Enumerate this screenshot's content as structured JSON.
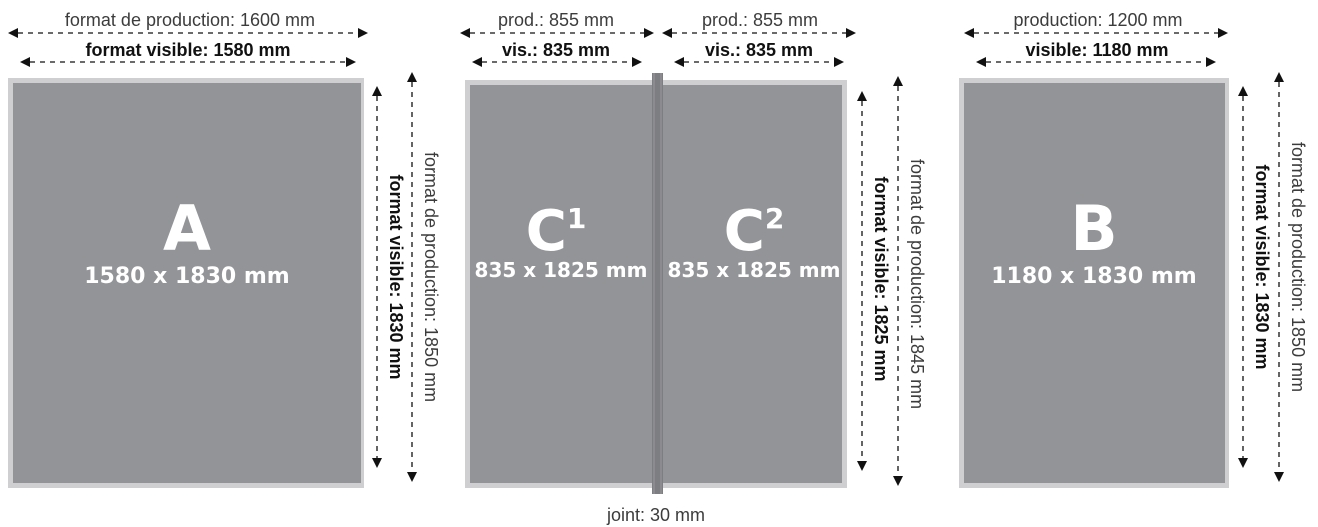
{
  "colors": {
    "panel_fill": "#939497",
    "panel_border": "#cfcfd1",
    "joint_fill": "#7d7e81",
    "panel_text": "#ffffff",
    "dimension_lines": "#111111"
  },
  "panel_a": {
    "letter": "A",
    "size": "1580 x 1830 mm",
    "width_production": "format de production: 1600 mm",
    "width_visible": "format visible: 1580 mm",
    "height_visible": "format visible: 1830 mm",
    "height_production": "format de production: 1850 mm"
  },
  "panel_c": {
    "c1_letter": "C",
    "c1_superscript": "1",
    "c1_size": "835 x 1825 mm",
    "c2_letter": "C",
    "c2_superscript": "2",
    "c2_size": "835 x 1825 mm",
    "c1_width_production": "prod.: 855 mm",
    "c1_width_visible": "vis.: 835 mm",
    "c2_width_production": "prod.: 855 mm",
    "c2_width_visible": "vis.: 835 mm",
    "height_visible": "format visible: 1825 mm",
    "height_production": "format de production: 1845 mm",
    "joint": "joint: 30 mm"
  },
  "panel_b": {
    "letter": "B",
    "size": "1180 x 1830 mm",
    "width_production": "production: 1200 mm",
    "width_visible": "visible: 1180 mm",
    "height_visible": "format visible: 1830 mm",
    "height_production": "format de production: 1850 mm"
  }
}
